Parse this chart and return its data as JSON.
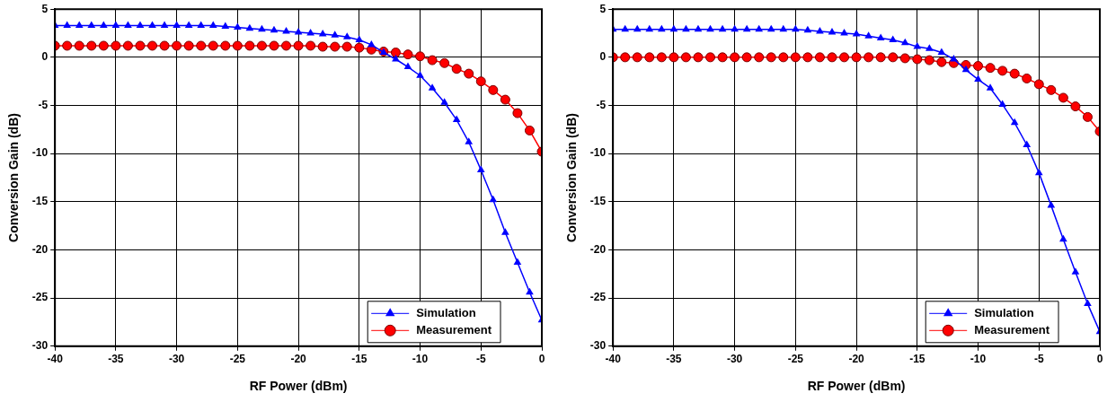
{
  "chart_data": [
    {
      "type": "line",
      "xlabel": "RF Power (dBm)",
      "ylabel": "Conversion Gain (dB)",
      "x": [
        -40,
        -39,
        -38,
        -37,
        -36,
        -35,
        -34,
        -33,
        -32,
        -31,
        -30,
        -29,
        -28,
        -27,
        -26,
        -25,
        -24,
        -23,
        -22,
        -21,
        -20,
        -19,
        -18,
        -17,
        -16,
        -15,
        -14,
        -13,
        -12,
        -11,
        -10,
        -9,
        -8,
        -7,
        -6,
        -5,
        -4,
        -3,
        -2,
        -1,
        0
      ],
      "series": [
        {
          "name": "Simulation",
          "color": "#0000ff",
          "marker": "triangle",
          "values": [
            3.3,
            3.3,
            3.3,
            3.3,
            3.3,
            3.3,
            3.3,
            3.3,
            3.3,
            3.3,
            3.3,
            3.3,
            3.3,
            3.3,
            3.2,
            3.1,
            3.0,
            2.9,
            2.8,
            2.7,
            2.6,
            2.5,
            2.4,
            2.3,
            2.1,
            1.8,
            1.3,
            0.5,
            -0.2,
            -1.0,
            -1.9,
            -3.2,
            -4.7,
            -6.5,
            -8.8,
            -11.7,
            -14.8,
            -18.2,
            -21.3,
            -24.4,
            -27.3
          ]
        },
        {
          "name": "Measurement",
          "color": "#ff0000",
          "marker": "circle",
          "values": [
            1.2,
            1.2,
            1.2,
            1.2,
            1.2,
            1.2,
            1.2,
            1.2,
            1.2,
            1.2,
            1.2,
            1.2,
            1.2,
            1.2,
            1.2,
            1.2,
            1.2,
            1.2,
            1.2,
            1.2,
            1.2,
            1.2,
            1.1,
            1.1,
            1.1,
            1.0,
            0.8,
            0.6,
            0.5,
            0.3,
            0.1,
            -0.3,
            -0.6,
            -1.2,
            -1.7,
            -2.5,
            -3.4,
            -4.4,
            -5.8,
            -7.6,
            -9.8
          ]
        }
      ],
      "xlim": [
        -40,
        0
      ],
      "xticks": [
        -40,
        -35,
        -30,
        -25,
        -20,
        -15,
        -10,
        -5,
        0
      ],
      "ylim": [
        -30,
        5
      ],
      "yticks": [
        -30,
        -25,
        -20,
        -15,
        -10,
        -5,
        0,
        5
      ],
      "grid": true,
      "legend": "bottom right",
      "line_style": "solid"
    },
    {
      "type": "line",
      "xlabel": "RF Power (dBm)",
      "ylabel": "Conversion Gain (dB)",
      "x": [
        -40,
        -39,
        -38,
        -37,
        -36,
        -35,
        -34,
        -33,
        -32,
        -31,
        -30,
        -29,
        -28,
        -27,
        -26,
        -25,
        -24,
        -23,
        -22,
        -21,
        -20,
        -19,
        -18,
        -17,
        -16,
        -15,
        -14,
        -13,
        -12,
        -11,
        -10,
        -9,
        -8,
        -7,
        -6,
        -5,
        -4,
        -3,
        -2,
        -1,
        0
      ],
      "series": [
        {
          "name": "Simulation",
          "color": "#0000ff",
          "marker": "triangle",
          "values": [
            2.9,
            2.9,
            2.9,
            2.9,
            2.9,
            2.9,
            2.9,
            2.9,
            2.9,
            2.9,
            2.9,
            2.9,
            2.9,
            2.9,
            2.9,
            2.9,
            2.8,
            2.7,
            2.6,
            2.5,
            2.4,
            2.2,
            2.0,
            1.8,
            1.5,
            1.1,
            0.9,
            0.5,
            -0.2,
            -1.3,
            -2.3,
            -3.2,
            -4.9,
            -6.8,
            -9.1,
            -12.0,
            -15.4,
            -18.9,
            -22.3,
            -25.6,
            -28.5
          ]
        },
        {
          "name": "Measurement",
          "color": "#ff0000",
          "marker": "circle",
          "values": [
            0.0,
            0.0,
            0.0,
            0.0,
            0.0,
            0.0,
            0.0,
            0.0,
            0.0,
            0.0,
            0.0,
            0.0,
            0.0,
            0.0,
            0.0,
            0.0,
            0.0,
            0.0,
            0.0,
            0.0,
            0.0,
            0.0,
            0.0,
            0.0,
            -0.1,
            -0.2,
            -0.3,
            -0.5,
            -0.6,
            -0.8,
            -0.9,
            -1.1,
            -1.4,
            -1.7,
            -2.2,
            -2.8,
            -3.4,
            -4.2,
            -5.1,
            -6.2,
            -7.7
          ]
        }
      ],
      "xlim": [
        -40,
        0
      ],
      "xticks": [
        -40,
        -35,
        -30,
        -25,
        -20,
        -15,
        -10,
        -5,
        0
      ],
      "ylim": [
        -30,
        5
      ],
      "yticks": [
        -30,
        -25,
        -20,
        -15,
        -10,
        -5,
        0,
        5
      ],
      "grid": true,
      "legend": "bottom right",
      "line_style": "solid"
    }
  ]
}
